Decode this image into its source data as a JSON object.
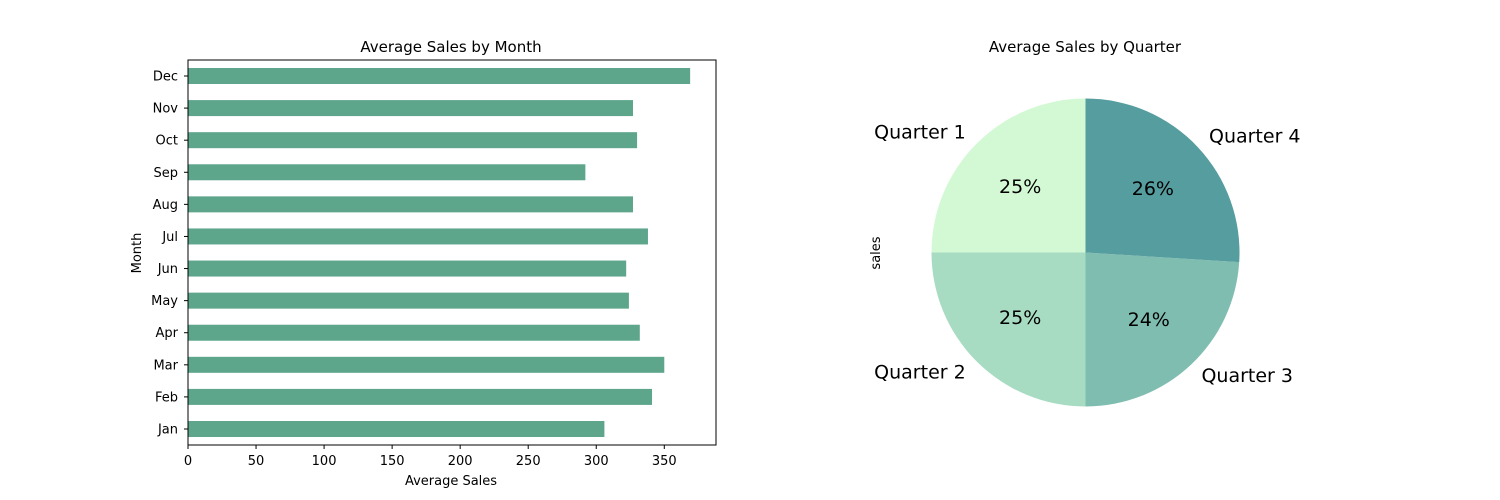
{
  "chart_data": [
    {
      "type": "bar",
      "orientation": "horizontal",
      "title": "Average Sales by Month",
      "xlabel": "Average Sales",
      "ylabel": "Month",
      "categories": [
        "Jan",
        "Feb",
        "Mar",
        "Apr",
        "May",
        "Jun",
        "Jul",
        "Aug",
        "Sep",
        "Oct",
        "Nov",
        "Dec"
      ],
      "values": [
        306,
        341,
        350,
        332,
        324,
        322,
        338,
        327,
        292,
        330,
        327,
        369
      ],
      "xlim": [
        0,
        388
      ],
      "xticks": [
        0,
        50,
        100,
        150,
        200,
        250,
        300,
        350
      ],
      "bar_color": "#5da58b",
      "grid": false
    },
    {
      "type": "pie",
      "title": "Average Sales by Quarter",
      "ylabel": "sales",
      "labels": [
        "Quarter 1",
        "Quarter 2",
        "Quarter 3",
        "Quarter 4"
      ],
      "values": [
        25,
        25,
        24,
        26
      ],
      "pct_labels": [
        "25%",
        "25%",
        "24%",
        "26%"
      ],
      "colors": [
        "#d3f9d4",
        "#a7dcc3",
        "#7fbdb0",
        "#569d9f"
      ],
      "startangle": 90
    }
  ]
}
